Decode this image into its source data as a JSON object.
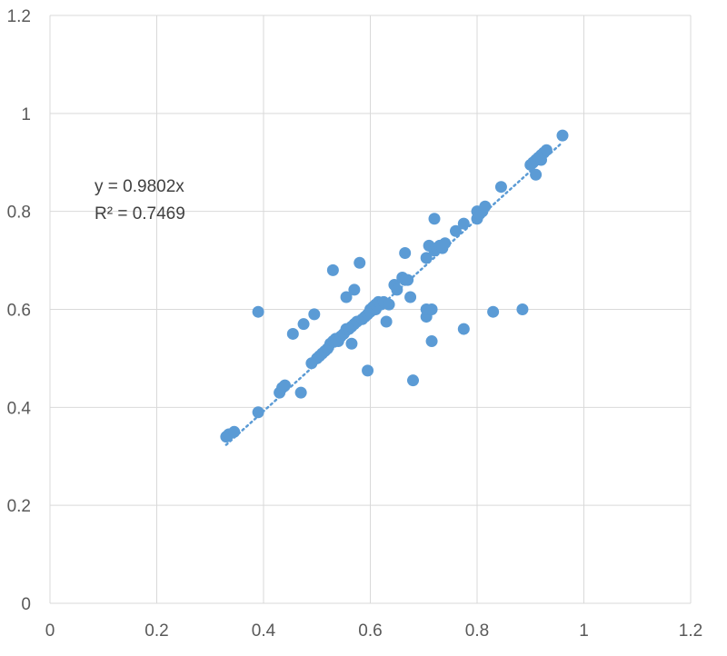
{
  "chart_data": {
    "type": "scatter",
    "title": "",
    "xlabel": "",
    "ylabel": "",
    "xlim": [
      0,
      1.2
    ],
    "ylim": [
      0,
      1.2
    ],
    "x_ticks": [
      "0",
      "0.2",
      "0.4",
      "0.6",
      "0.8",
      "1",
      "1.2"
    ],
    "y_ticks": [
      "0",
      "0.2",
      "0.4",
      "0.6",
      "0.8",
      "1",
      "1.2"
    ],
    "grid": true,
    "legend": "none",
    "colors": {
      "points": "#5b9bd5",
      "trendline": "#5b9bd5",
      "grid": "#d9d9d9",
      "text": "#595959"
    },
    "trendline": {
      "type": "linear-through-origin",
      "slope": 0.9802,
      "x_range": [
        0.33,
        0.96
      ]
    },
    "annotations": {
      "equation": "y = 0.9802x",
      "r_squared": "R² = 0.7469"
    },
    "series": [
      {
        "points": [
          [
            0.33,
            0.34
          ],
          [
            0.335,
            0.345
          ],
          [
            0.345,
            0.35
          ],
          [
            0.39,
            0.39
          ],
          [
            0.39,
            0.595
          ],
          [
            0.43,
            0.43
          ],
          [
            0.435,
            0.44
          ],
          [
            0.44,
            0.445
          ],
          [
            0.455,
            0.55
          ],
          [
            0.47,
            0.43
          ],
          [
            0.475,
            0.57
          ],
          [
            0.49,
            0.49
          ],
          [
            0.495,
            0.59
          ],
          [
            0.5,
            0.5
          ],
          [
            0.505,
            0.505
          ],
          [
            0.51,
            0.51
          ],
          [
            0.515,
            0.515
          ],
          [
            0.52,
            0.52
          ],
          [
            0.525,
            0.53
          ],
          [
            0.53,
            0.68
          ],
          [
            0.53,
            0.535
          ],
          [
            0.535,
            0.54
          ],
          [
            0.54,
            0.535
          ],
          [
            0.545,
            0.545
          ],
          [
            0.55,
            0.55
          ],
          [
            0.555,
            0.56
          ],
          [
            0.555,
            0.625
          ],
          [
            0.56,
            0.56
          ],
          [
            0.565,
            0.565
          ],
          [
            0.565,
            0.53
          ],
          [
            0.57,
            0.57
          ],
          [
            0.57,
            0.64
          ],
          [
            0.575,
            0.575
          ],
          [
            0.58,
            0.695
          ],
          [
            0.585,
            0.58
          ],
          [
            0.59,
            0.585
          ],
          [
            0.595,
            0.59
          ],
          [
            0.595,
            0.475
          ],
          [
            0.6,
            0.6
          ],
          [
            0.6,
            0.595
          ],
          [
            0.605,
            0.605
          ],
          [
            0.61,
            0.6
          ],
          [
            0.61,
            0.61
          ],
          [
            0.615,
            0.615
          ],
          [
            0.62,
            0.61
          ],
          [
            0.625,
            0.615
          ],
          [
            0.63,
            0.575
          ],
          [
            0.635,
            0.61
          ],
          [
            0.645,
            0.65
          ],
          [
            0.65,
            0.64
          ],
          [
            0.66,
            0.665
          ],
          [
            0.665,
            0.715
          ],
          [
            0.665,
            0.66
          ],
          [
            0.67,
            0.66
          ],
          [
            0.675,
            0.625
          ],
          [
            0.68,
            0.455
          ],
          [
            0.705,
            0.705
          ],
          [
            0.705,
            0.585
          ],
          [
            0.705,
            0.6
          ],
          [
            0.71,
            0.73
          ],
          [
            0.715,
            0.535
          ],
          [
            0.715,
            0.6
          ],
          [
            0.72,
            0.72
          ],
          [
            0.72,
            0.785
          ],
          [
            0.725,
            0.725
          ],
          [
            0.73,
            0.73
          ],
          [
            0.735,
            0.725
          ],
          [
            0.74,
            0.735
          ],
          [
            0.76,
            0.76
          ],
          [
            0.775,
            0.56
          ],
          [
            0.775,
            0.775
          ],
          [
            0.8,
            0.8
          ],
          [
            0.8,
            0.785
          ],
          [
            0.805,
            0.795
          ],
          [
            0.81,
            0.8
          ],
          [
            0.815,
            0.81
          ],
          [
            0.83,
            0.595
          ],
          [
            0.845,
            0.85
          ],
          [
            0.885,
            0.6
          ],
          [
            0.9,
            0.895
          ],
          [
            0.905,
            0.9
          ],
          [
            0.91,
            0.875
          ],
          [
            0.91,
            0.905
          ],
          [
            0.915,
            0.91
          ],
          [
            0.92,
            0.905
          ],
          [
            0.92,
            0.915
          ],
          [
            0.925,
            0.92
          ],
          [
            0.93,
            0.925
          ],
          [
            0.96,
            0.955
          ]
        ]
      }
    ]
  }
}
